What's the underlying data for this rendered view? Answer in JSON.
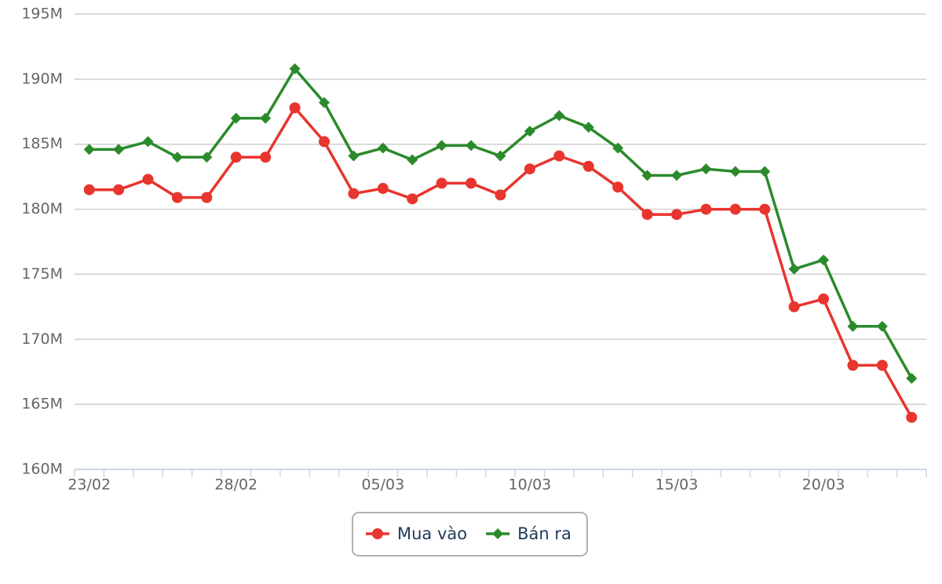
{
  "chart_data": {
    "type": "line",
    "categories": [
      "23/02",
      null,
      null,
      null,
      null,
      "28/02",
      null,
      null,
      null,
      null,
      "05/03",
      null,
      null,
      null,
      null,
      "10/03",
      null,
      null,
      null,
      null,
      "15/03",
      null,
      null,
      null,
      null,
      "20/03",
      null,
      null,
      null
    ],
    "series": [
      {
        "name": "Mua vào",
        "color": "#e8352e",
        "marker": "circle",
        "values": [
          181.5,
          181.5,
          182.3,
          180.9,
          180.9,
          184.0,
          184.0,
          187.8,
          185.2,
          181.2,
          181.6,
          180.8,
          182.0,
          182.0,
          181.1,
          183.1,
          184.1,
          183.3,
          181.7,
          179.6,
          179.6,
          180.0,
          180.0,
          180.0,
          172.5,
          173.1,
          168.0,
          168.0,
          164.0
        ]
      },
      {
        "name": "Bán ra",
        "color": "#2b8a2b",
        "marker": "diamond",
        "values": [
          184.6,
          184.6,
          185.2,
          184.0,
          184.0,
          187.0,
          187.0,
          190.8,
          188.2,
          184.1,
          184.7,
          183.8,
          184.9,
          184.9,
          184.1,
          186.0,
          187.2,
          186.3,
          184.7,
          182.6,
          182.6,
          183.1,
          182.9,
          182.9,
          175.4,
          176.1,
          171.0,
          171.0,
          167.0
        ]
      }
    ],
    "ylim": [
      160,
      195
    ],
    "yticks": [
      {
        "value": 160,
        "label": "160M"
      },
      {
        "value": 165,
        "label": "165M"
      },
      {
        "value": 170,
        "label": "170M"
      },
      {
        "value": 175,
        "label": "175M"
      },
      {
        "value": 180,
        "label": "180M"
      },
      {
        "value": 185,
        "label": "185M"
      },
      {
        "value": 190,
        "label": "190M"
      },
      {
        "value": 195,
        "label": "195M"
      }
    ],
    "grid": true,
    "legend": "bottom"
  }
}
